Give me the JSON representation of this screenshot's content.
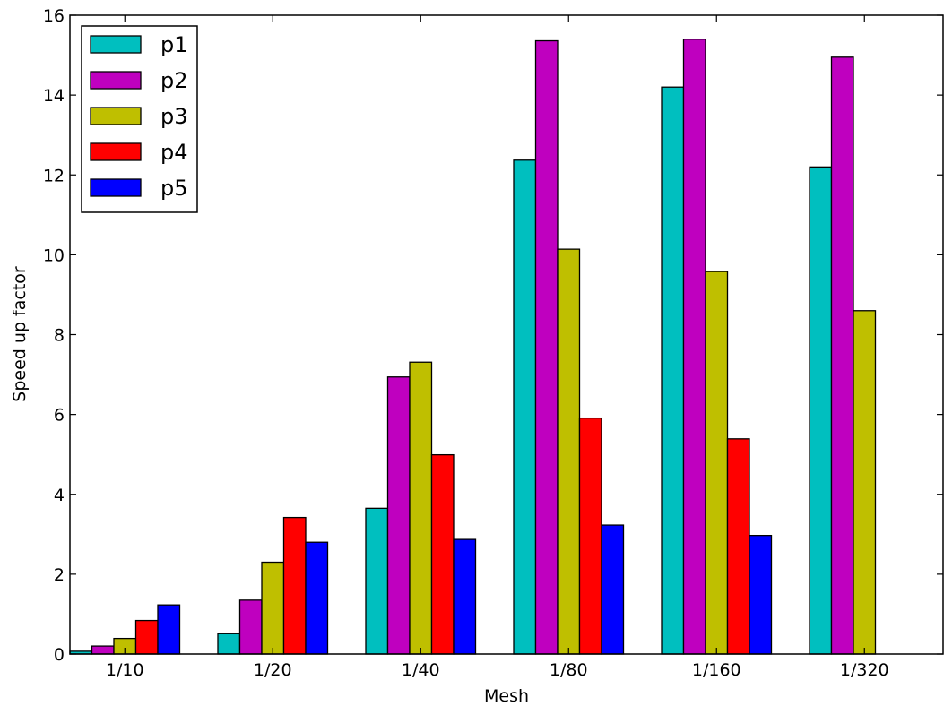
{
  "chart_data": {
    "type": "bar",
    "title": "",
    "xlabel": "Mesh",
    "ylabel": "Speed up factor",
    "categories": [
      "1/10",
      "1/20",
      "1/40",
      "1/80",
      "1/160",
      "1/320"
    ],
    "ylim": [
      0,
      16
    ],
    "yticks": [
      "0",
      "2",
      "4",
      "6",
      "8",
      "10",
      "12",
      "14",
      "16"
    ],
    "grid": false,
    "legend_position": "top-left",
    "series": [
      {
        "name": "p1",
        "color": "#00bfbf",
        "values": [
          0.07,
          0.51,
          3.65,
          12.37,
          14.2,
          12.2
        ]
      },
      {
        "name": "p2",
        "color": "#bf00bf",
        "values": [
          0.2,
          1.35,
          6.94,
          15.36,
          15.4,
          14.95
        ]
      },
      {
        "name": "p3",
        "color": "#bfbf00",
        "values": [
          0.39,
          2.3,
          7.31,
          10.14,
          9.58,
          8.6
        ]
      },
      {
        "name": "p4",
        "color": "#ff0000",
        "values": [
          0.84,
          3.42,
          4.99,
          5.91,
          5.39,
          null
        ]
      },
      {
        "name": "p5",
        "color": "#0000ff",
        "values": [
          1.23,
          2.8,
          2.87,
          3.23,
          2.97,
          null
        ]
      }
    ]
  }
}
